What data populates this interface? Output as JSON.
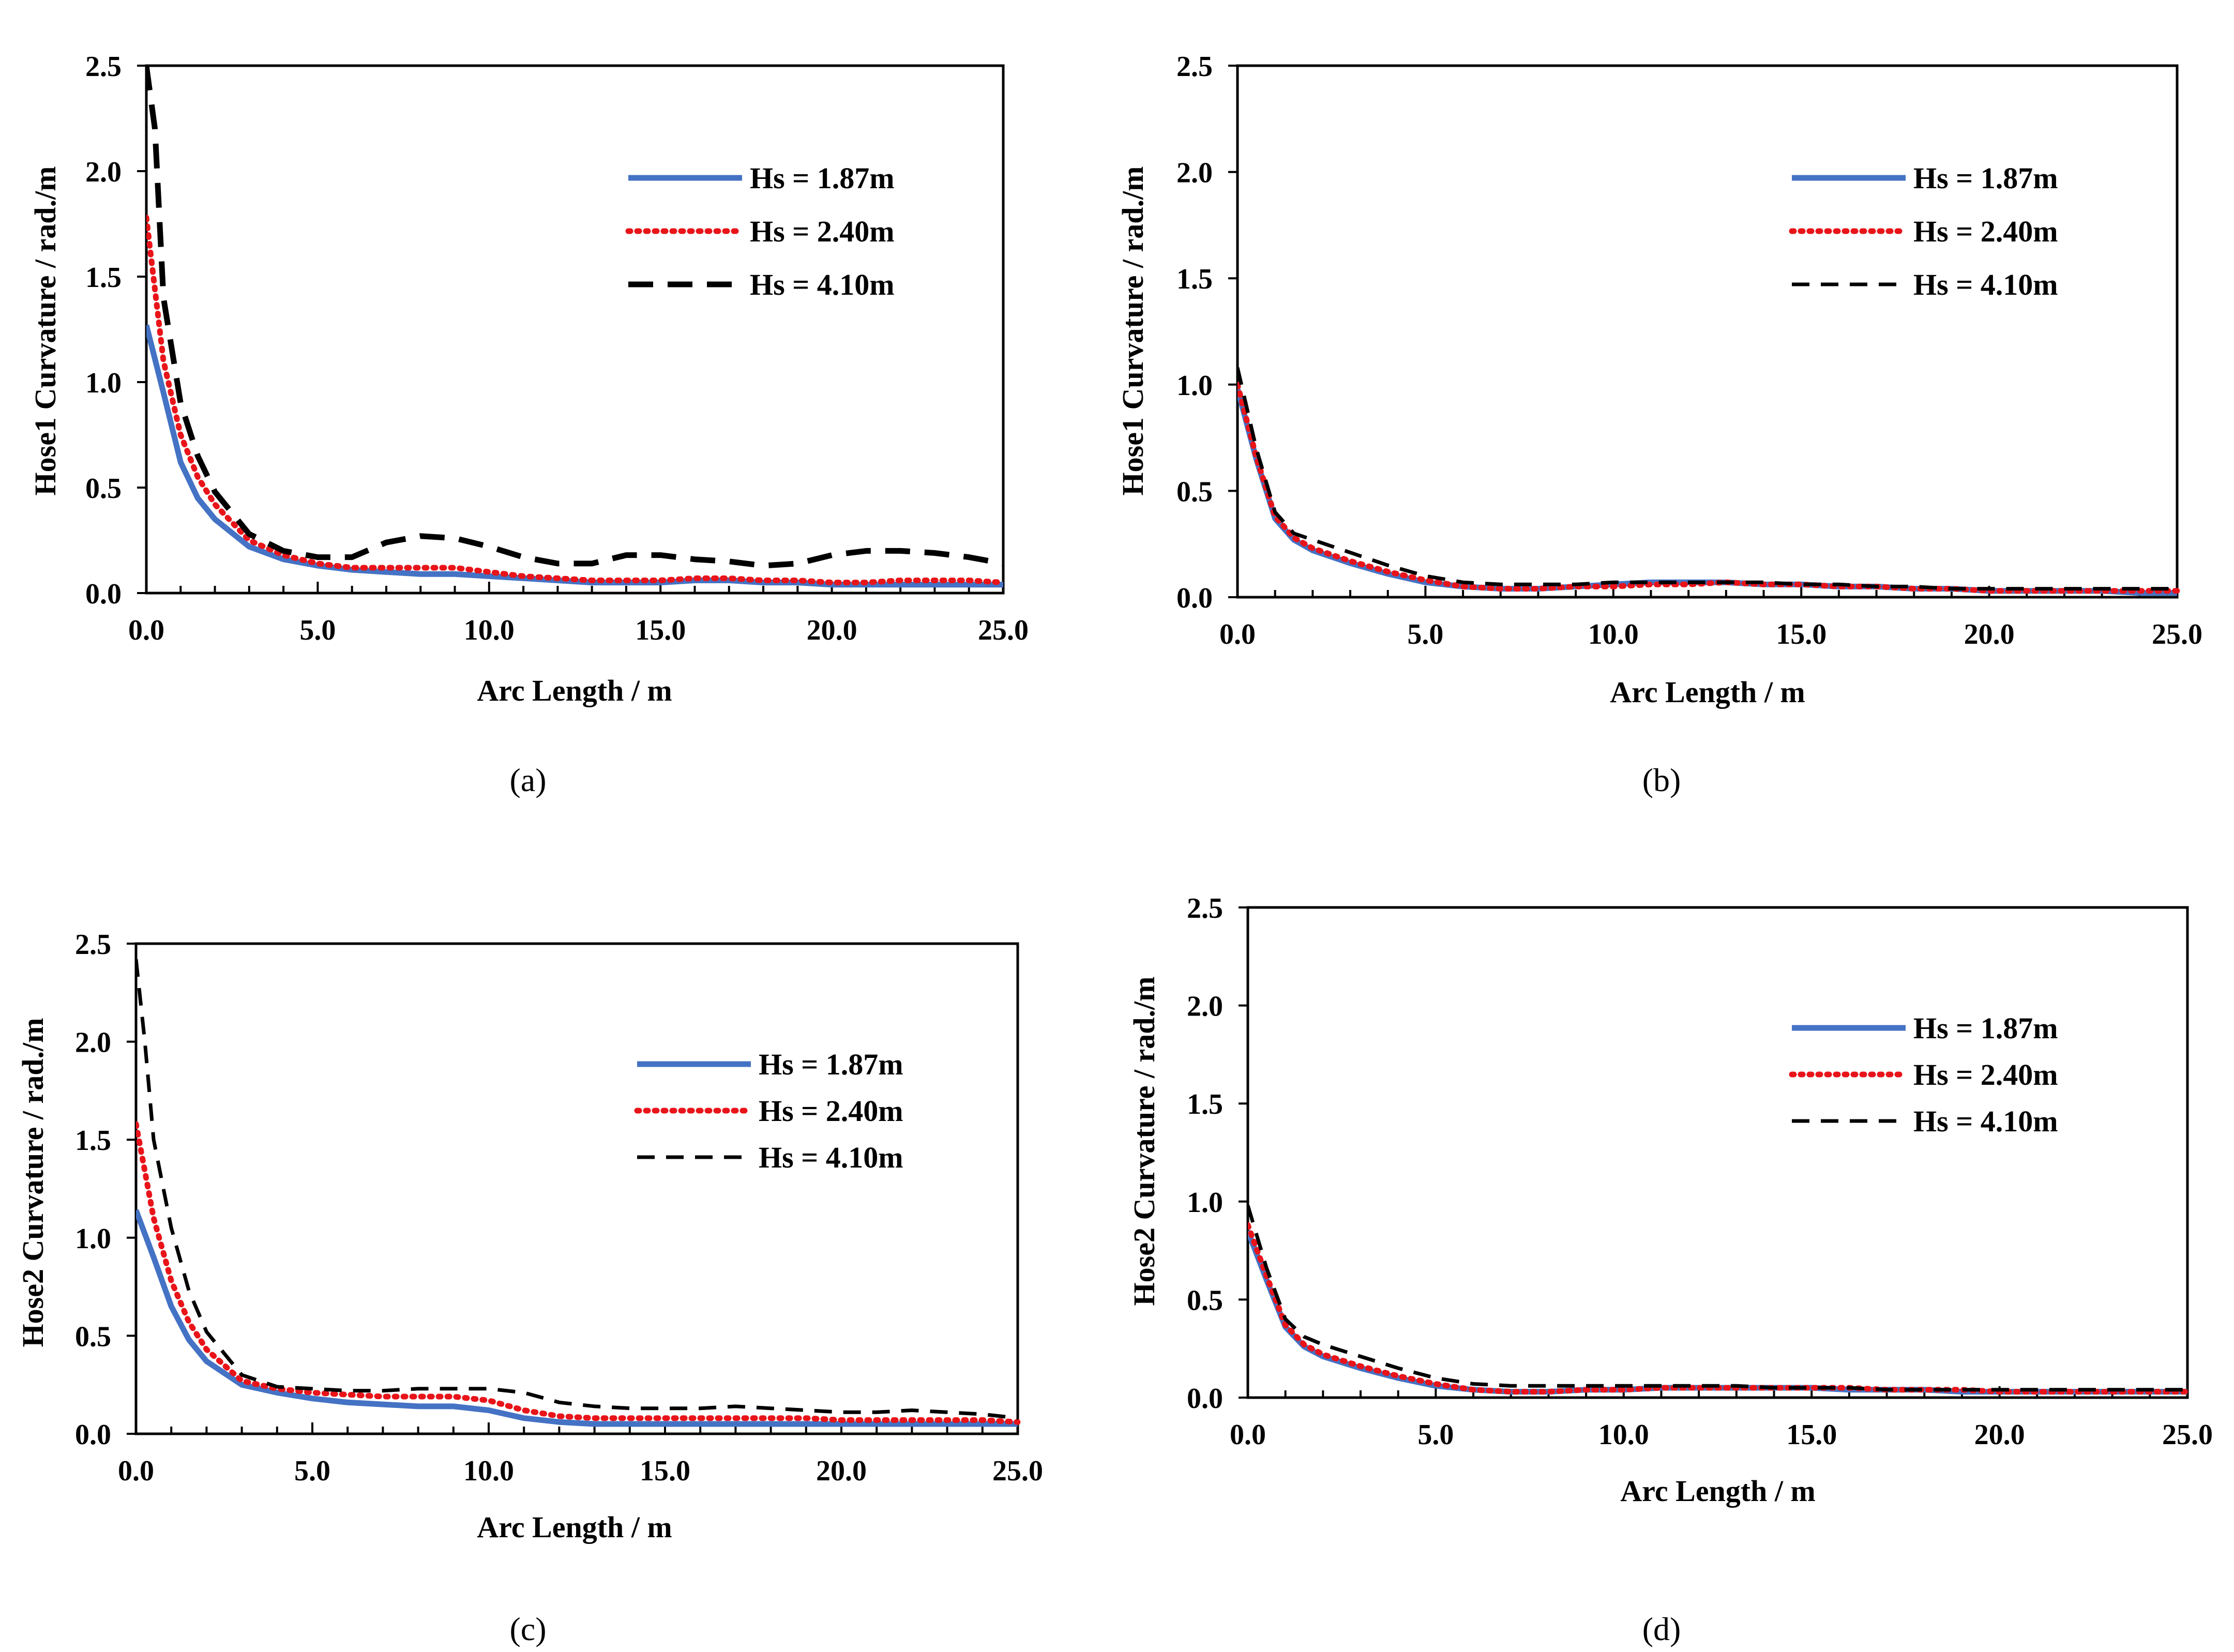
{
  "chart_data": [
    {
      "type": "line",
      "caption": "(a)",
      "xlabel": "Arc Length / m",
      "ylabel": "Hose1 Curvature / rad./m",
      "xlim": [
        0,
        25
      ],
      "ylim": [
        0,
        2.5
      ],
      "xticks": [
        "0.0",
        "5.0",
        "10.0",
        "15.0",
        "20.0",
        "25.0"
      ],
      "yticks": [
        "0.0",
        "0.5",
        "1.0",
        "1.5",
        "2.0",
        "2.5"
      ],
      "legend": "top-right",
      "series": [
        {
          "name": "Hs = 1.87m",
          "color": "#4472c4",
          "style": "solid-thick",
          "x": [
            0,
            0.5,
            1,
            1.5,
            2,
            3,
            4,
            5,
            6,
            7,
            8,
            9,
            10,
            11,
            12,
            13,
            14,
            15,
            16,
            17,
            18,
            19,
            20,
            21,
            22,
            23,
            24,
            25
          ],
          "y": [
            1.27,
            0.95,
            0.62,
            0.45,
            0.35,
            0.22,
            0.16,
            0.13,
            0.11,
            0.1,
            0.09,
            0.09,
            0.08,
            0.07,
            0.06,
            0.05,
            0.05,
            0.05,
            0.06,
            0.06,
            0.05,
            0.05,
            0.04,
            0.04,
            0.04,
            0.04,
            0.04,
            0.04
          ]
        },
        {
          "name": "Hs = 2.40m",
          "color": "#e8141a",
          "style": "dotted",
          "x": [
            0,
            0.5,
            1,
            1.5,
            2,
            3,
            4,
            5,
            6,
            7,
            8,
            9,
            10,
            11,
            12,
            13,
            14,
            15,
            16,
            17,
            18,
            19,
            20,
            21,
            22,
            23,
            24,
            25
          ],
          "y": [
            1.78,
            1.1,
            0.75,
            0.55,
            0.42,
            0.25,
            0.18,
            0.14,
            0.12,
            0.12,
            0.12,
            0.12,
            0.1,
            0.08,
            0.07,
            0.06,
            0.06,
            0.06,
            0.07,
            0.07,
            0.06,
            0.06,
            0.05,
            0.05,
            0.06,
            0.06,
            0.06,
            0.05
          ]
        },
        {
          "name": "Hs = 4.10m",
          "color": "#000000",
          "style": "dashed-thick",
          "x": [
            0,
            0.25,
            0.5,
            1,
            1.5,
            2,
            3,
            4,
            5,
            6,
            7,
            8,
            9,
            10,
            11,
            12,
            13,
            14,
            15,
            16,
            17,
            18,
            19,
            20,
            21,
            22,
            23,
            24,
            25
          ],
          "y": [
            2.5,
            2.2,
            1.4,
            0.9,
            0.65,
            0.48,
            0.28,
            0.2,
            0.17,
            0.17,
            0.24,
            0.27,
            0.26,
            0.22,
            0.17,
            0.14,
            0.14,
            0.18,
            0.18,
            0.16,
            0.15,
            0.13,
            0.14,
            0.18,
            0.2,
            0.2,
            0.19,
            0.17,
            0.14
          ]
        }
      ]
    },
    {
      "type": "line",
      "caption": "(b)",
      "xlabel": "Arc Length / m",
      "ylabel": "Hose1 Curvature / rad./m",
      "xlim": [
        0,
        25
      ],
      "ylim": [
        0,
        2.5
      ],
      "xticks": [
        "0.0",
        "5.0",
        "10.0",
        "15.0",
        "20.0",
        "25.0"
      ],
      "yticks": [
        "0.0",
        "0.5",
        "1.0",
        "1.5",
        "2.0",
        "2.5"
      ],
      "legend": "top-right",
      "series": [
        {
          "name": "Hs = 1.87m",
          "color": "#4472c4",
          "style": "solid-thick",
          "x": [
            0,
            0.5,
            1,
            1.5,
            2,
            3,
            4,
            5,
            6,
            7,
            8,
            9,
            10,
            11,
            12,
            13,
            14,
            15,
            16,
            17,
            18,
            19,
            20,
            21,
            22,
            23,
            24,
            25
          ],
          "y": [
            0.98,
            0.65,
            0.37,
            0.27,
            0.22,
            0.16,
            0.11,
            0.07,
            0.05,
            0.04,
            0.04,
            0.05,
            0.06,
            0.07,
            0.07,
            0.07,
            0.06,
            0.06,
            0.05,
            0.05,
            0.04,
            0.04,
            0.03,
            0.03,
            0.03,
            0.03,
            0.02,
            0.02
          ]
        },
        {
          "name": "Hs = 2.40m",
          "color": "#e8141a",
          "style": "dotted",
          "x": [
            0,
            0.5,
            1,
            1.5,
            2,
            3,
            4,
            5,
            6,
            7,
            8,
            9,
            10,
            11,
            12,
            13,
            14,
            15,
            16,
            17,
            18,
            19,
            20,
            21,
            22,
            23,
            24,
            25
          ],
          "y": [
            1.0,
            0.66,
            0.38,
            0.28,
            0.23,
            0.17,
            0.12,
            0.08,
            0.05,
            0.04,
            0.04,
            0.05,
            0.05,
            0.06,
            0.06,
            0.07,
            0.06,
            0.06,
            0.05,
            0.05,
            0.04,
            0.04,
            0.03,
            0.03,
            0.03,
            0.03,
            0.03,
            0.03
          ]
        },
        {
          "name": "Hs = 4.10m",
          "color": "#000000",
          "style": "dashed",
          "x": [
            0,
            0.5,
            1,
            1.5,
            2,
            3,
            4,
            5,
            6,
            7,
            8,
            9,
            10,
            11,
            12,
            13,
            14,
            15,
            16,
            17,
            18,
            19,
            20,
            21,
            22,
            23,
            24,
            25
          ],
          "y": [
            1.08,
            0.7,
            0.4,
            0.3,
            0.27,
            0.21,
            0.15,
            0.1,
            0.07,
            0.06,
            0.06,
            0.06,
            0.07,
            0.07,
            0.07,
            0.07,
            0.07,
            0.06,
            0.06,
            0.05,
            0.05,
            0.04,
            0.04,
            0.04,
            0.04,
            0.04,
            0.04,
            0.04
          ]
        }
      ]
    },
    {
      "type": "line",
      "caption": "(c)",
      "xlabel": "Arc Length / m",
      "ylabel": "Hose2 Curvature / rad./m",
      "xlim": [
        0,
        25
      ],
      "ylim": [
        0,
        2.5
      ],
      "xticks": [
        "0.0",
        "5.0",
        "10.0",
        "15.0",
        "20.0",
        "25.0"
      ],
      "yticks": [
        "0.0",
        "0.5",
        "1.0",
        "1.5",
        "2.0",
        "2.5"
      ],
      "legend": "top-right",
      "series": [
        {
          "name": "Hs = 1.87m",
          "color": "#4472c4",
          "style": "solid-thick",
          "x": [
            0,
            0.5,
            1,
            1.5,
            2,
            3,
            4,
            5,
            6,
            7,
            8,
            9,
            10,
            11,
            12,
            13,
            14,
            15,
            16,
            17,
            18,
            19,
            20,
            21,
            22,
            23,
            24,
            25
          ],
          "y": [
            1.14,
            0.9,
            0.65,
            0.48,
            0.37,
            0.25,
            0.21,
            0.18,
            0.16,
            0.15,
            0.14,
            0.14,
            0.12,
            0.08,
            0.06,
            0.05,
            0.05,
            0.05,
            0.05,
            0.05,
            0.05,
            0.05,
            0.05,
            0.05,
            0.05,
            0.05,
            0.05,
            0.05
          ]
        },
        {
          "name": "Hs = 2.40m",
          "color": "#e8141a",
          "style": "dotted",
          "x": [
            0,
            0.5,
            1,
            1.5,
            2,
            3,
            4,
            5,
            6,
            7,
            8,
            9,
            10,
            11,
            12,
            13,
            14,
            15,
            16,
            17,
            18,
            19,
            20,
            21,
            22,
            23,
            24,
            25
          ],
          "y": [
            1.58,
            1.1,
            0.78,
            0.57,
            0.43,
            0.27,
            0.23,
            0.21,
            0.2,
            0.19,
            0.19,
            0.19,
            0.17,
            0.12,
            0.09,
            0.08,
            0.08,
            0.08,
            0.08,
            0.08,
            0.08,
            0.08,
            0.07,
            0.07,
            0.07,
            0.07,
            0.07,
            0.06
          ]
        },
        {
          "name": "Hs = 4.10m",
          "color": "#000000",
          "style": "dashed",
          "x": [
            0,
            0.25,
            0.5,
            1,
            1.5,
            2,
            3,
            4,
            5,
            6,
            7,
            8,
            9,
            10,
            11,
            12,
            13,
            14,
            15,
            16,
            17,
            18,
            19,
            20,
            21,
            22,
            23,
            24,
            25
          ],
          "y": [
            2.42,
            2.0,
            1.5,
            1.05,
            0.73,
            0.52,
            0.3,
            0.24,
            0.23,
            0.22,
            0.22,
            0.23,
            0.23,
            0.23,
            0.21,
            0.16,
            0.14,
            0.13,
            0.13,
            0.13,
            0.14,
            0.13,
            0.12,
            0.11,
            0.11,
            0.12,
            0.11,
            0.1,
            0.08
          ]
        }
      ]
    },
    {
      "type": "line",
      "caption": "(d)",
      "xlabel": "Arc Length / m",
      "ylabel": "Hose2 Curvature / rad./m",
      "xlim": [
        0,
        25
      ],
      "ylim": [
        0,
        2.5
      ],
      "xticks": [
        "0.0",
        "5.0",
        "10.0",
        "15.0",
        "20.0",
        "25.0"
      ],
      "yticks": [
        "0.0",
        "0.5",
        "1.0",
        "1.5",
        "2.0",
        "2.5"
      ],
      "legend": "top-right",
      "series": [
        {
          "name": "Hs = 1.87m",
          "color": "#4472c4",
          "style": "solid-thick",
          "x": [
            0,
            0.5,
            1,
            1.5,
            2,
            3,
            4,
            5,
            6,
            7,
            8,
            9,
            10,
            11,
            12,
            13,
            14,
            15,
            16,
            17,
            18,
            19,
            20,
            21,
            22,
            23,
            24,
            25
          ],
          "y": [
            0.85,
            0.6,
            0.36,
            0.26,
            0.21,
            0.15,
            0.1,
            0.06,
            0.04,
            0.03,
            0.03,
            0.04,
            0.04,
            0.05,
            0.05,
            0.05,
            0.05,
            0.05,
            0.04,
            0.04,
            0.04,
            0.03,
            0.03,
            0.03,
            0.03,
            0.03,
            0.03,
            0.03
          ]
        },
        {
          "name": "Hs = 2.40m",
          "color": "#e8141a",
          "style": "dotted",
          "x": [
            0,
            0.5,
            1,
            1.5,
            2,
            3,
            4,
            5,
            6,
            7,
            8,
            9,
            10,
            11,
            12,
            13,
            14,
            15,
            16,
            17,
            18,
            19,
            20,
            21,
            22,
            23,
            24,
            25
          ],
          "y": [
            0.88,
            0.62,
            0.37,
            0.27,
            0.22,
            0.16,
            0.11,
            0.07,
            0.04,
            0.03,
            0.03,
            0.04,
            0.04,
            0.05,
            0.05,
            0.05,
            0.05,
            0.05,
            0.05,
            0.04,
            0.04,
            0.04,
            0.03,
            0.03,
            0.03,
            0.03,
            0.03,
            0.03
          ]
        },
        {
          "name": "Hs = 4.10m",
          "color": "#000000",
          "style": "dashed",
          "x": [
            0,
            0.5,
            1,
            1.5,
            2,
            3,
            4,
            5,
            6,
            7,
            8,
            9,
            10,
            11,
            12,
            13,
            14,
            15,
            16,
            17,
            18,
            19,
            20,
            21,
            22,
            23,
            24,
            25
          ],
          "y": [
            0.98,
            0.66,
            0.4,
            0.31,
            0.27,
            0.21,
            0.15,
            0.1,
            0.07,
            0.06,
            0.06,
            0.06,
            0.06,
            0.06,
            0.06,
            0.06,
            0.05,
            0.05,
            0.05,
            0.04,
            0.04,
            0.04,
            0.04,
            0.04,
            0.04,
            0.04,
            0.04,
            0.04
          ]
        }
      ]
    }
  ]
}
